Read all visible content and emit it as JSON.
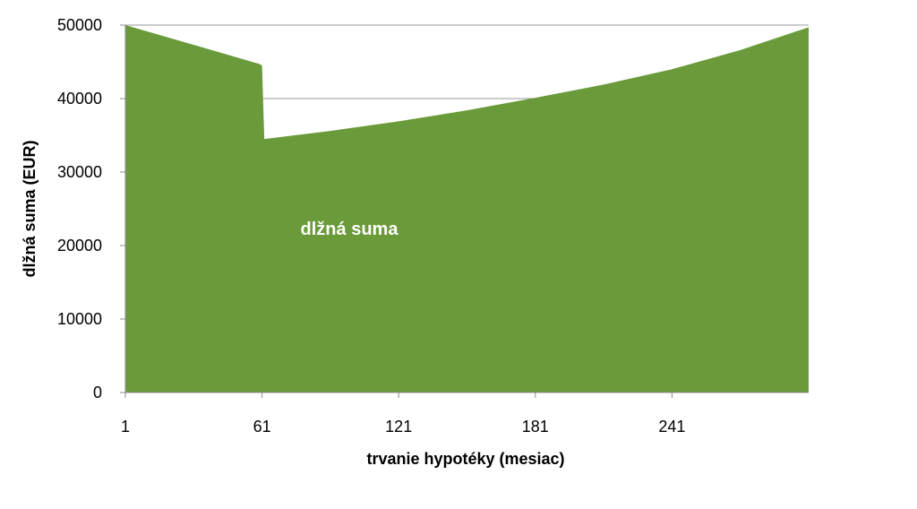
{
  "chart_data": {
    "type": "area",
    "title": "",
    "xlabel": "trvanie hypotéky (mesiac)",
    "ylabel": "dlžná suma (EUR)",
    "x_ticks": [
      "1",
      "61",
      "121",
      "181",
      "241"
    ],
    "y_ticks": [
      "0",
      "10000",
      "20000",
      "30000",
      "40000",
      "50000"
    ],
    "xlim": [
      1,
      301
    ],
    "ylim": [
      0,
      50000
    ],
    "grid": "horizontal",
    "series": [
      {
        "name": "dlžná suma",
        "color": "#6a9a3a",
        "x": [
          1,
          60,
          61,
          62,
          91,
          121,
          151,
          181,
          211,
          241,
          271,
          301
        ],
        "y": [
          50000,
          44700,
          44500,
          34500,
          35600,
          36900,
          38400,
          40100,
          41900,
          44000,
          46600,
          49700
        ]
      }
    ]
  }
}
